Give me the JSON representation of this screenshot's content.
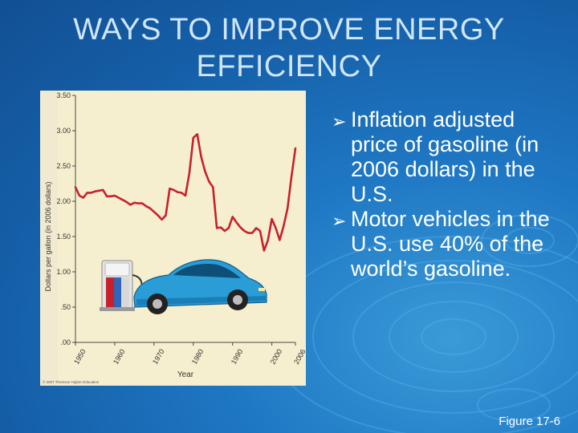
{
  "slide": {
    "title": "WAYS TO IMPROVE ENERGY EFFICIENCY",
    "bullets": [
      "Inflation adjusted price of gasoline (in 2006 dollars) in the U.S.",
      "Motor vehicles in the U.S. use 40% of the world’s gasoline."
    ],
    "caption": "Figure 17-6",
    "bullet_icon": "arrow-bullet-icon"
  },
  "colors": {
    "background": "#1f78c4",
    "title": "#cfe6fb",
    "line": "#c8202c",
    "plot_background": "#f6efcf"
  },
  "chart_data": {
    "type": "line",
    "title": "",
    "xlabel": "Year",
    "ylabel": "Dollars per gallon (in 2006 dollars)",
    "xlim": [
      1950,
      2006
    ],
    "ylim": [
      0,
      3.5
    ],
    "xticks": [
      "1950",
      "1960",
      "1970",
      "1980",
      "1990",
      "2000",
      "2006"
    ],
    "xtick_values": [
      1950,
      1960,
      1970,
      1980,
      1990,
      2000,
      2006
    ],
    "yticks": [
      "3.50",
      "3.00",
      "2.50",
      "2.00",
      "1.50",
      "1.00",
      ".50",
      ".00"
    ],
    "ytick_values": [
      3.5,
      3.0,
      2.5,
      2.0,
      1.5,
      1.0,
      0.5,
      0.0
    ],
    "grid": false,
    "credit": "© 2007 Thomson Higher Education",
    "series": [
      {
        "x": [
          1950,
          1951,
          1952,
          1953,
          1954,
          1955,
          1956,
          1957,
          1958,
          1959,
          1960,
          1961,
          1962,
          1963,
          1964,
          1965,
          1966,
          1967,
          1968,
          1969,
          1970,
          1971,
          1972,
          1973,
          1974,
          1975,
          1976,
          1977,
          1978,
          1979,
          1980,
          1981,
          1982,
          1983,
          1984,
          1985,
          1986,
          1987,
          1988,
          1989,
          1990,
          1991,
          1992,
          1993,
          1994,
          1995,
          1996,
          1997,
          1998,
          1999,
          2000,
          2001,
          2002,
          2003,
          2004,
          2005,
          2006
        ],
        "values": [
          2.2,
          2.08,
          2.05,
          2.12,
          2.12,
          2.14,
          2.15,
          2.16,
          2.07,
          2.07,
          2.08,
          2.05,
          2.02,
          1.99,
          1.95,
          1.98,
          1.97,
          1.97,
          1.93,
          1.9,
          1.85,
          1.8,
          1.74,
          1.8,
          2.18,
          2.16,
          2.13,
          2.12,
          2.08,
          2.4,
          2.9,
          2.95,
          2.63,
          2.42,
          2.28,
          2.2,
          1.62,
          1.63,
          1.58,
          1.62,
          1.78,
          1.7,
          1.63,
          1.58,
          1.55,
          1.55,
          1.62,
          1.58,
          1.3,
          1.45,
          1.75,
          1.62,
          1.45,
          1.65,
          1.9,
          2.35,
          2.75
        ]
      }
    ]
  }
}
